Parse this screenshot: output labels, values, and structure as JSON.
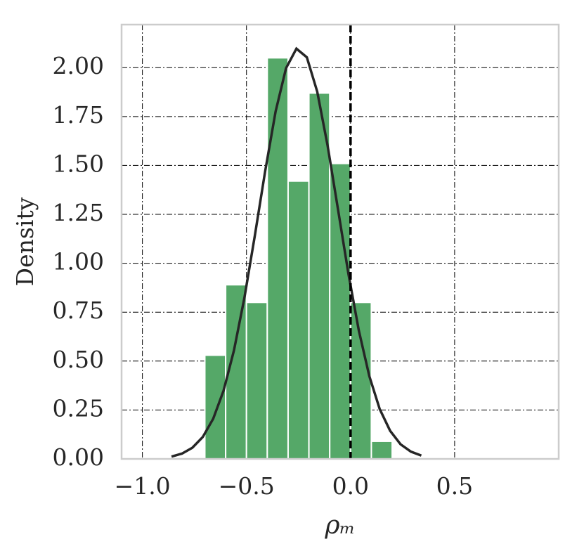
{
  "chart_data": {
    "type": "histogram",
    "xlabel": "ρₘ",
    "ylabel": "Density",
    "bins": [
      -0.7,
      -0.6,
      -0.5,
      -0.4,
      -0.3,
      -0.2,
      -0.1,
      0.0,
      0.1,
      0.2
    ],
    "values": [
      0.53,
      0.89,
      0.8,
      2.05,
      1.42,
      1.87,
      1.51,
      0.8,
      0.09
    ],
    "color": "#55a868",
    "curve": {
      "color": "#262626",
      "x": [
        -0.86,
        -0.81,
        -0.76,
        -0.71,
        -0.66,
        -0.61,
        -0.56,
        -0.51,
        -0.46,
        -0.41,
        -0.36,
        -0.31,
        -0.26,
        -0.21,
        -0.16,
        -0.11,
        -0.06,
        -0.01,
        0.04,
        0.09,
        0.14,
        0.19,
        0.24,
        0.29,
        0.34
      ],
      "y": [
        0.012,
        0.027,
        0.057,
        0.112,
        0.205,
        0.349,
        0.555,
        0.823,
        1.14,
        1.472,
        1.776,
        1.997,
        2.097,
        2.053,
        1.877,
        1.6,
        1.274,
        0.945,
        0.655,
        0.424,
        0.255,
        0.144,
        0.075,
        0.037,
        0.017
      ]
    },
    "vline": 0,
    "xlim": [
      -1.1,
      1.0
    ],
    "ylim": [
      0,
      2.22
    ],
    "xticks": [
      {
        "value": -1.0,
        "label": "−1.0"
      },
      {
        "value": -0.5,
        "label": "−0.5"
      },
      {
        "value": 0.0,
        "label": "0.0"
      },
      {
        "value": 0.5,
        "label": "0.5"
      }
    ],
    "yticks": [
      {
        "value": 0,
        "label": "0.00"
      },
      {
        "value": 0.25,
        "label": "0.25"
      },
      {
        "value": 0.5,
        "label": "0.50"
      },
      {
        "value": 0.75,
        "label": "0.75"
      },
      {
        "value": 1.0,
        "label": "1.00"
      },
      {
        "value": 1.25,
        "label": "1.25"
      },
      {
        "value": 1.5,
        "label": "1.50"
      },
      {
        "value": 1.75,
        "label": "1.75"
      },
      {
        "value": 2.0,
        "label": "2.00"
      }
    ],
    "grid": true
  }
}
